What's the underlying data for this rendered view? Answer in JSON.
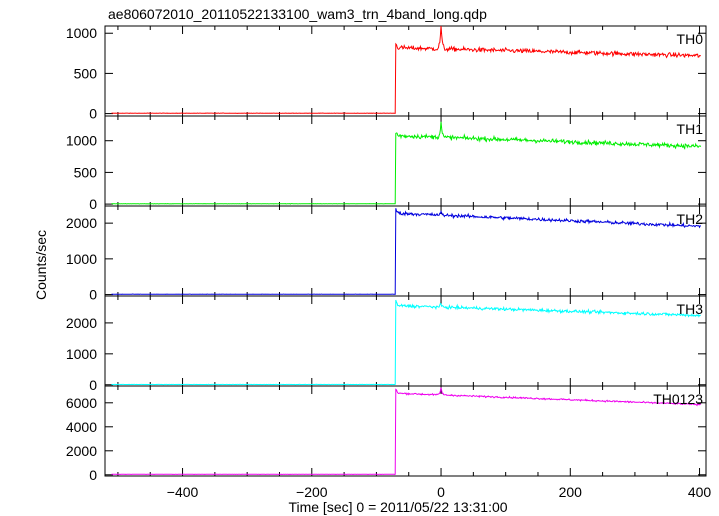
{
  "chart_data": {
    "type": "line",
    "title": "ae806072010_20110522133100_wam3_trn_4band_long.qdp",
    "xlabel": "Time [sec] 0 = 2011/05/22 13:31:00",
    "ylabel": "Counts/sec",
    "xlim": [
      -520,
      410
    ],
    "xticks": [
      -400,
      -200,
      0,
      200,
      400
    ],
    "x_start": -510,
    "x_end": 402,
    "onset_time": -70,
    "flare_time": 0,
    "colors": {
      "TH0": "#ff0000",
      "TH1": "#00ee00",
      "TH2": "#0000dd",
      "TH3": "#00ffff",
      "TH0123": "#ee00ee"
    },
    "series": [
      {
        "name": "TH0",
        "color": "#ff0000",
        "ylim": [
          -30,
          1090
        ],
        "yticks": [
          0,
          500,
          1000
        ],
        "pre_level": 5,
        "start_level": 820,
        "end_level": 720,
        "noise": 45,
        "flare_peak": 1120
      },
      {
        "name": "TH1",
        "color": "#00ee00",
        "ylim": [
          -30,
          1390
        ],
        "yticks": [
          0,
          500,
          1000
        ],
        "pre_level": 5,
        "start_level": 1080,
        "end_level": 910,
        "noise": 55,
        "flare_peak": 1320
      },
      {
        "name": "TH2",
        "color": "#0000dd",
        "ylim": [
          -40,
          2480
        ],
        "yticks": [
          0,
          1000,
          2000
        ],
        "pre_level": 10,
        "start_level": 2280,
        "end_level": 1910,
        "noise": 75,
        "flare_peak": 2350
      },
      {
        "name": "TH3",
        "color": "#00ffff",
        "ylim": [
          -40,
          2870
        ],
        "yticks": [
          0,
          1000,
          2000
        ],
        "pre_level": 10,
        "start_level": 2560,
        "end_level": 2240,
        "noise": 80,
        "flare_peak": 2650
      },
      {
        "name": "TH0123",
        "color": "#ee00ee",
        "ylim": [
          -100,
          7400
        ],
        "yticks": [
          0,
          2000,
          4000,
          6000
        ],
        "pre_level": 40,
        "start_level": 6800,
        "end_level": 5850,
        "noise": 110,
        "flare_peak": 7400
      }
    ]
  }
}
